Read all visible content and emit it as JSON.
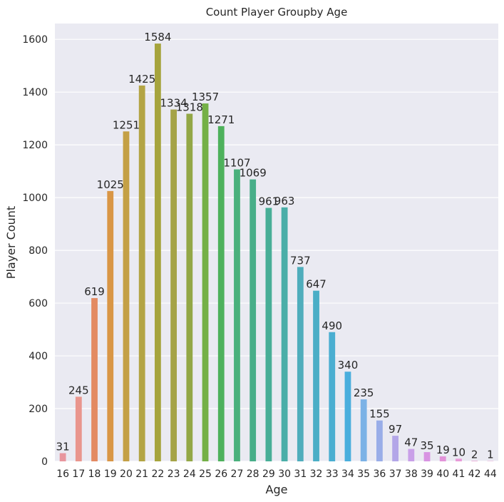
{
  "chart_data": {
    "type": "bar",
    "title": "Count Player Groupby Age",
    "xlabel": "Age",
    "ylabel": "Player Count",
    "ylim": [
      0,
      1660
    ],
    "yticks": [
      0,
      200,
      400,
      600,
      800,
      1000,
      1200,
      1400,
      1600
    ],
    "grid": true,
    "categories": [
      "16",
      "17",
      "18",
      "19",
      "20",
      "21",
      "22",
      "23",
      "24",
      "25",
      "26",
      "27",
      "28",
      "29",
      "30",
      "31",
      "32",
      "33",
      "34",
      "35",
      "36",
      "37",
      "38",
      "39",
      "40",
      "41",
      "42",
      "44"
    ],
    "values": [
      31,
      245,
      619,
      1025,
      1251,
      1425,
      1584,
      1334,
      1318,
      1357,
      1271,
      1107,
      1069,
      961,
      963,
      737,
      647,
      490,
      340,
      235,
      155,
      97,
      47,
      35,
      19,
      10,
      2,
      1
    ],
    "colors": [
      "#e8969e",
      "#e9958d",
      "#e38a62",
      "#d99645",
      "#c4a045",
      "#b3a444",
      "#a6a43d",
      "#a5a347",
      "#93a746",
      "#74b046",
      "#4eb15c",
      "#4ab07c",
      "#48ae89",
      "#48ae97",
      "#4aaea8",
      "#4fadbc",
      "#4aaec6",
      "#4aaed1",
      "#4aaedd",
      "#7bb2e6",
      "#99ade8",
      "#b3a6e8",
      "#c9a0e8",
      "#d893e2",
      "#e293d9",
      "#e89ad8",
      "#e8a0d2",
      "#e896cb"
    ]
  }
}
